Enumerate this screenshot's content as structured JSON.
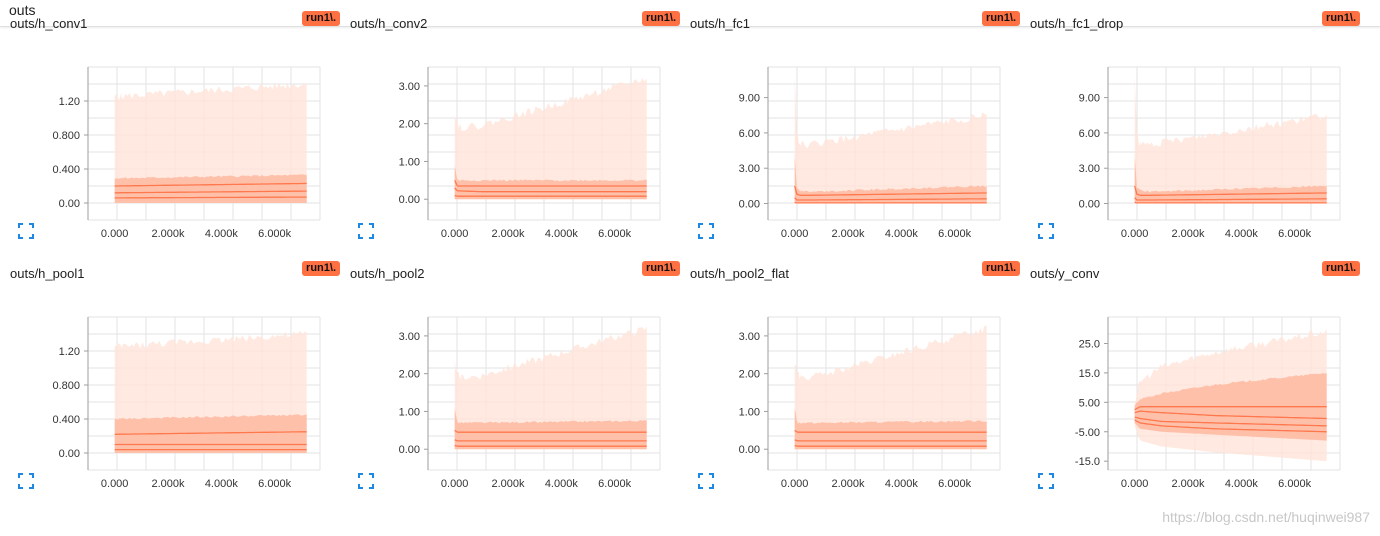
{
  "section": {
    "title": "outs"
  },
  "watermark": "https://blog.csdn.net/huqinwei987",
  "colors": {
    "accent": "#ff7043",
    "band_outer": "#ffe3d8",
    "band_mid": "#ffb8a0",
    "line": "#ff7043",
    "grid": "#e3e3e3"
  },
  "icons": {
    "expand": "fullscreen-icon"
  },
  "charts": [
    {
      "title": "outs/h_conv1",
      "run": "run1\\.",
      "xticks": [
        "0.000",
        "2.000k",
        "4.000k",
        "6.000k"
      ],
      "yticks": [
        "0.00",
        "0.400",
        "0.800",
        "1.20"
      ],
      "chart_data": {
        "type": "area",
        "x_range": [
          -1000,
          7700
        ],
        "ylim": [
          -0.2,
          1.6
        ],
        "yvals": [
          0,
          0.4,
          0.8,
          1.2
        ],
        "xvals": [
          0,
          2000,
          4000,
          6000
        ],
        "x_steps": [
          0,
          7200
        ],
        "outer_top": [
          1.25,
          1.4
        ],
        "outer_bot": [
          0,
          0
        ],
        "mid_top": [
          0.29,
          0.33
        ],
        "mid_bot": [
          0,
          0
        ],
        "lines": [
          [
            0.2,
            0.23
          ],
          [
            0.12,
            0.14
          ],
          [
            0.06,
            0.07
          ]
        ]
      }
    },
    {
      "title": "outs/h_conv2",
      "run": "run1\\.",
      "xticks": [
        "0.000",
        "2.000k",
        "4.000k",
        "6.000k"
      ],
      "yticks": [
        "0.00",
        "1.00",
        "2.00",
        "3.00"
      ],
      "chart_data": {
        "type": "area",
        "x_range": [
          -1000,
          7700
        ],
        "ylim": [
          -0.55,
          3.5
        ],
        "yvals": [
          0,
          1,
          2,
          3
        ],
        "xvals": [
          0,
          2000,
          4000,
          6000
        ],
        "x_steps": [
          0,
          100,
          200,
          1000,
          7200
        ],
        "outer_top": [
          2.3,
          2.0,
          1.9,
          1.95,
          3.2
        ],
        "outer_bot": [
          0,
          0,
          0,
          0,
          0
        ],
        "mid_top": [
          0.9,
          0.5,
          0.5,
          0.5,
          0.5
        ],
        "mid_bot": [
          0,
          0,
          0,
          0,
          0
        ],
        "lines": [
          [
            0.5,
            0.35,
            0.35,
            0.35,
            0.35
          ],
          [
            0.3,
            0.22,
            0.22,
            0.2,
            0.2
          ],
          [
            0.1,
            0.08,
            0.08,
            0.08,
            0.08
          ]
        ]
      }
    },
    {
      "title": "outs/h_fc1",
      "run": "run1\\.",
      "xticks": [
        "0.000",
        "2.000k",
        "4.000k",
        "6.000k"
      ],
      "yticks": [
        "0.00",
        "3.00",
        "6.00",
        "9.00"
      ],
      "chart_data": {
        "type": "area",
        "x_range": [
          -1000,
          7700
        ],
        "ylim": [
          -1.4,
          11.6
        ],
        "yvals": [
          0,
          3,
          6,
          9
        ],
        "xvals": [
          0,
          2000,
          4000,
          6000
        ],
        "x_steps": [
          0,
          80,
          200,
          600,
          7200
        ],
        "outer_top": [
          11.0,
          6.0,
          5.0,
          5.0,
          7.5
        ],
        "outer_bot": [
          0,
          0,
          0,
          0,
          0
        ],
        "mid_top": [
          4.2,
          1.4,
          1.1,
          1.0,
          1.5
        ],
        "mid_bot": [
          0,
          0,
          0,
          0,
          0
        ],
        "lines": [
          [
            1.5,
            0.8,
            0.7,
            0.7,
            0.9
          ],
          [
            0.5,
            0.3,
            0.3,
            0.3,
            0.4
          ],
          [
            0.1,
            0.05,
            0.05,
            0.05,
            0.05
          ]
        ]
      }
    },
    {
      "title": "outs/h_fc1_drop",
      "run": "run1\\.",
      "xticks": [
        "0.000",
        "2.000k",
        "4.000k",
        "6.000k"
      ],
      "yticks": [
        "0.00",
        "3.00",
        "6.00",
        "9.00"
      ],
      "chart_data": {
        "type": "area",
        "x_range": [
          -1000,
          7700
        ],
        "ylim": [
          -1.4,
          11.6
        ],
        "yvals": [
          0,
          3,
          6,
          9
        ],
        "xvals": [
          0,
          2000,
          4000,
          6000
        ],
        "x_steps": [
          0,
          80,
          200,
          600,
          7200
        ],
        "outer_top": [
          11.0,
          6.0,
          5.0,
          5.0,
          7.5
        ],
        "outer_bot": [
          0,
          0,
          0,
          0,
          0
        ],
        "mid_top": [
          4.2,
          1.4,
          1.1,
          1.0,
          1.5
        ],
        "mid_bot": [
          0,
          0,
          0,
          0,
          0
        ],
        "lines": [
          [
            1.5,
            0.8,
            0.7,
            0.7,
            0.9
          ],
          [
            0.5,
            0.3,
            0.3,
            0.3,
            0.4
          ],
          [
            0.1,
            0.05,
            0.05,
            0.05,
            0.05
          ]
        ]
      }
    },
    {
      "title": "outs/h_pool1",
      "run": "run1\\.",
      "xticks": [
        "0.000",
        "2.000k",
        "4.000k",
        "6.000k"
      ],
      "yticks": [
        "0.00",
        "0.400",
        "0.800",
        "1.20"
      ],
      "chart_data": {
        "type": "area",
        "x_range": [
          -1000,
          7700
        ],
        "ylim": [
          -0.2,
          1.6
        ],
        "yvals": [
          0,
          0.4,
          0.8,
          1.2
        ],
        "xvals": [
          0,
          2000,
          4000,
          6000
        ],
        "x_steps": [
          0,
          7200
        ],
        "outer_top": [
          1.25,
          1.4
        ],
        "outer_bot": [
          0,
          0
        ],
        "mid_top": [
          0.4,
          0.45
        ],
        "mid_bot": [
          0,
          0
        ],
        "lines": [
          [
            0.22,
            0.25
          ],
          [
            0.1,
            0.1
          ],
          [
            0.04,
            0.04
          ]
        ]
      }
    },
    {
      "title": "outs/h_pool2",
      "run": "run1\\.",
      "xticks": [
        "0.000",
        "2.000k",
        "4.000k",
        "6.000k"
      ],
      "yticks": [
        "0.00",
        "1.00",
        "2.00",
        "3.00"
      ],
      "chart_data": {
        "type": "area",
        "x_range": [
          -1000,
          7700
        ],
        "ylim": [
          -0.55,
          3.5
        ],
        "yvals": [
          0,
          1,
          2,
          3
        ],
        "xvals": [
          0,
          2000,
          4000,
          6000
        ],
        "x_steps": [
          0,
          100,
          200,
          1000,
          7200
        ],
        "outer_top": [
          2.3,
          2.0,
          1.9,
          1.95,
          3.2
        ],
        "outer_bot": [
          0,
          0,
          0,
          0,
          0
        ],
        "mid_top": [
          1.1,
          0.7,
          0.7,
          0.7,
          0.75
        ],
        "mid_bot": [
          0,
          0,
          0,
          0,
          0
        ],
        "lines": [
          [
            0.5,
            0.45,
            0.45,
            0.45,
            0.45
          ],
          [
            0.25,
            0.22,
            0.22,
            0.22,
            0.22
          ],
          [
            0.1,
            0.08,
            0.08,
            0.08,
            0.08
          ]
        ]
      }
    },
    {
      "title": "outs/h_pool2_flat",
      "run": "run1\\.",
      "xticks": [
        "0.000",
        "2.000k",
        "4.000k",
        "6.000k"
      ],
      "yticks": [
        "0.00",
        "1.00",
        "2.00",
        "3.00"
      ],
      "chart_data": {
        "type": "area",
        "x_range": [
          -1000,
          7700
        ],
        "ylim": [
          -0.55,
          3.5
        ],
        "yvals": [
          0,
          1,
          2,
          3
        ],
        "xvals": [
          0,
          2000,
          4000,
          6000
        ],
        "x_steps": [
          0,
          100,
          200,
          1000,
          7200
        ],
        "outer_top": [
          2.3,
          2.0,
          1.9,
          1.95,
          3.2
        ],
        "outer_bot": [
          0,
          0,
          0,
          0,
          0
        ],
        "mid_top": [
          1.1,
          0.7,
          0.7,
          0.7,
          0.75
        ],
        "mid_bot": [
          0,
          0,
          0,
          0,
          0
        ],
        "lines": [
          [
            0.5,
            0.45,
            0.45,
            0.45,
            0.45
          ],
          [
            0.25,
            0.22,
            0.22,
            0.22,
            0.22
          ],
          [
            0.1,
            0.08,
            0.08,
            0.08,
            0.08
          ]
        ]
      }
    },
    {
      "title": "outs/y_conv",
      "run": "run1\\.",
      "xticks": [
        "0.000",
        "2.000k",
        "4.000k",
        "6.000k"
      ],
      "yticks": [
        "-15.0",
        "-5.00",
        "5.00",
        "15.0",
        "25.0"
      ],
      "chart_data": {
        "type": "area",
        "x_range": [
          -1000,
          7700
        ],
        "ylim": [
          -18,
          34
        ],
        "yvals": [
          -15,
          -5,
          5,
          15,
          25
        ],
        "xvals": [
          0,
          2000,
          4000,
          6000
        ],
        "x_steps": [
          0,
          200,
          1000,
          3000,
          7200
        ],
        "outer_top": [
          5,
          12,
          17,
          22,
          29
        ],
        "outer_bot": [
          -3,
          -8,
          -10,
          -12,
          -15
        ],
        "mid_top": [
          4,
          6,
          8,
          11,
          15
        ],
        "mid_bot": [
          -2,
          -4,
          -5,
          -6,
          -8
        ],
        "lines": [
          [
            2.5,
            3.5,
            3.5,
            3.5,
            3.5
          ],
          [
            1.5,
            2,
            1.5,
            0.5,
            -0.5
          ],
          [
            0,
            -0.5,
            -1.5,
            -2,
            -3
          ],
          [
            -1,
            -2,
            -3,
            -4,
            -5
          ]
        ]
      }
    }
  ]
}
